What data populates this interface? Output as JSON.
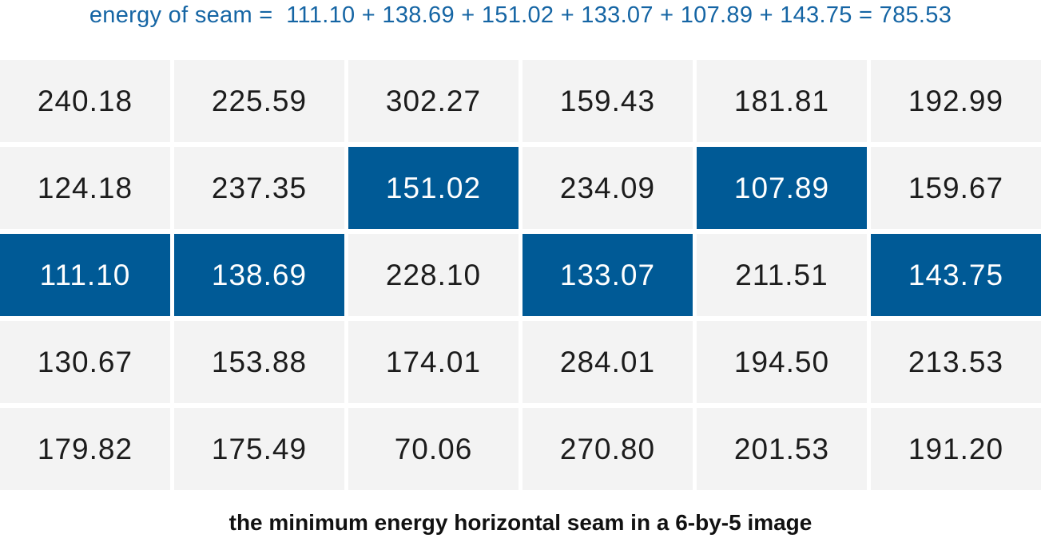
{
  "title": "energy of seam =  111.10 + 138.69 + 151.02 + 133.07 + 107.89 + 143.75 = 785.53",
  "caption": "the minimum energy horizontal seam in a 6-by-5 image",
  "seam": {
    "values": [
      111.1,
      138.69,
      151.02,
      133.07,
      107.89,
      143.75
    ],
    "total": 785.53
  },
  "grid": {
    "rows": 5,
    "cols": 6,
    "values": [
      [
        "240.18",
        "225.59",
        "302.27",
        "159.43",
        "181.81",
        "192.99"
      ],
      [
        "124.18",
        "237.35",
        "151.02",
        "234.09",
        "107.89",
        "159.67"
      ],
      [
        "111.10",
        "138.69",
        "228.10",
        "133.07",
        "211.51",
        "143.75"
      ],
      [
        "130.67",
        "153.88",
        "174.01",
        "284.01",
        "194.50",
        "213.53"
      ],
      [
        "179.82",
        "175.49",
        "70.06",
        "270.80",
        "201.53",
        "191.20"
      ]
    ],
    "seam_cells": [
      [
        1,
        2
      ],
      [
        1,
        4
      ],
      [
        2,
        0
      ],
      [
        2,
        1
      ],
      [
        2,
        3
      ],
      [
        2,
        5
      ]
    ]
  },
  "colors": {
    "title_text": "#1565a4",
    "cell_bg": "#f3f3f3",
    "cell_text": "#1c1c1c",
    "seam_cell_bg": "#005a96",
    "seam_cell_text": "#ffffff",
    "caption_text": "#111111"
  }
}
